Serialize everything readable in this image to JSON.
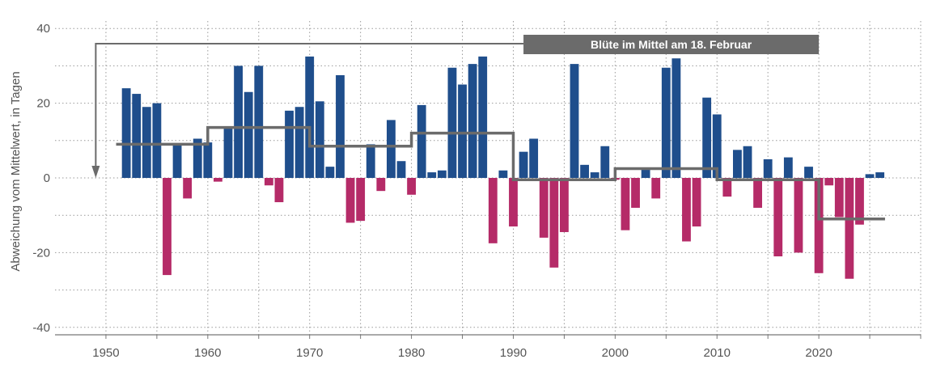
{
  "chart_data": {
    "type": "bar",
    "ylabel": "Abweichung vom Mittelwert, in Tagen",
    "xlabel": "",
    "xlim": [
      1945,
      2030
    ],
    "ylim": [
      -42,
      42
    ],
    "yticks": [
      -40,
      -20,
      0,
      20,
      40
    ],
    "xticks": [
      1950,
      1960,
      1970,
      1980,
      1990,
      2000,
      2010,
      2020
    ],
    "grid": true,
    "colors": {
      "positive": "#1f4e8c",
      "negative": "#b52b68",
      "mean_line": "#6b6b6b",
      "grid": "#9a9a9a",
      "axis": "#777777"
    },
    "years": [
      1952,
      1953,
      1954,
      1955,
      1956,
      1957,
      1958,
      1959,
      1960,
      1961,
      1962,
      1963,
      1964,
      1965,
      1966,
      1967,
      1968,
      1969,
      1970,
      1971,
      1972,
      1973,
      1974,
      1975,
      1976,
      1977,
      1978,
      1979,
      1980,
      1981,
      1982,
      1983,
      1984,
      1985,
      1986,
      1987,
      1988,
      1989,
      1990,
      1991,
      1992,
      1993,
      1994,
      1995,
      1996,
      1997,
      1998,
      1999,
      2000,
      2001,
      2002,
      2003,
      2004,
      2005,
      2006,
      2007,
      2008,
      2009,
      2010,
      2011,
      2012,
      2013,
      2014,
      2015,
      2016,
      2017,
      2018,
      2019,
      2020,
      2021,
      2022,
      2023,
      2024,
      2025,
      2026
    ],
    "values": [
      24,
      22.5,
      19,
      20,
      -26,
      9,
      -5.5,
      10.5,
      9.5,
      -1,
      13.5,
      30,
      23,
      30,
      -2,
      -6.5,
      18,
      19,
      32.5,
      20.5,
      3,
      27.5,
      -12,
      -11.5,
      9,
      -3.5,
      15.5,
      4.5,
      -4.5,
      19.5,
      1.5,
      2,
      29.5,
      25,
      30.5,
      32.5,
      -17.5,
      2,
      -13,
      7,
      10.5,
      -16,
      -24,
      -14.5,
      30.5,
      3.5,
      1.5,
      8.5,
      -0.5,
      -14,
      -8,
      2.5,
      -5.5,
      29.5,
      32,
      -17,
      -13,
      21.5,
      17,
      -5,
      7.5,
      8.5,
      -8,
      5,
      -21,
      5.5,
      -20,
      3,
      -25.5,
      -2,
      -10.5,
      -27,
      -12.5,
      1,
      1.5
    ],
    "decade_means": [
      {
        "start": 1951,
        "end": 1960,
        "value": 9
      },
      {
        "start": 1960,
        "end": 1970,
        "value": 13.5
      },
      {
        "start": 1970,
        "end": 1980,
        "value": 8.5
      },
      {
        "start": 1980,
        "end": 1990,
        "value": 12
      },
      {
        "start": 1990,
        "end": 2000,
        "value": -0.5
      },
      {
        "start": 2000,
        "end": 2010,
        "value": 2.5
      },
      {
        "start": 2010,
        "end": 2020,
        "value": -0.5
      },
      {
        "start": 2020,
        "end": 2026.5,
        "value": -11
      }
    ],
    "annotation": {
      "text": "Blüte im Mittel am 18. Februar",
      "arrow_to_y": 0,
      "arrow_x": 1949
    }
  }
}
